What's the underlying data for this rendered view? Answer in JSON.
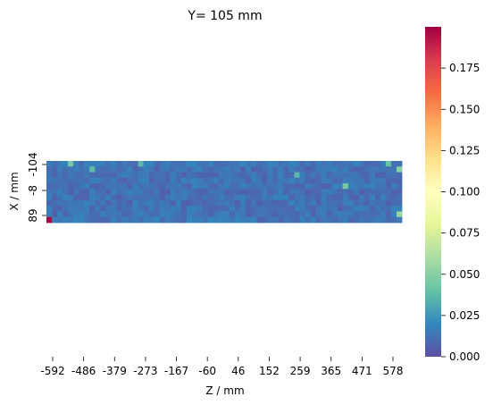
{
  "chart_data": {
    "type": "heatmap",
    "title": "Y= 105 mm",
    "xlabel": "Z / mm",
    "ylabel": "X / mm",
    "x_tick_labels": [
      "-592",
      "-486",
      "-379",
      "-273",
      "-167",
      "-60",
      "46",
      "152",
      "259",
      "365",
      "471",
      "578"
    ],
    "y_tick_labels": [
      "-104",
      "-8",
      "89"
    ],
    "colormap": "Spectral_r",
    "value_range": [
      0.0,
      0.2
    ],
    "colorbar_ticks": [
      "0.000",
      "0.025",
      "0.050",
      "0.075",
      "0.100",
      "0.125",
      "0.150",
      "0.175"
    ],
    "grid": [
      66,
      11
    ],
    "baseline_value": 0.012,
    "hotspots": [
      {
        "z": -592,
        "x": 89,
        "value": 0.199
      },
      {
        "z": -524,
        "x": -104,
        "value": 0.045
      },
      {
        "z": -442,
        "x": -80,
        "value": 0.038
      },
      {
        "z": -290,
        "x": -104,
        "value": 0.036
      },
      {
        "z": 250,
        "x": -60,
        "value": 0.035
      },
      {
        "z": 400,
        "x": -30,
        "value": 0.045
      },
      {
        "z": 560,
        "x": -104,
        "value": 0.04
      },
      {
        "z": 590,
        "x": -90,
        "value": 0.05
      },
      {
        "z": 590,
        "x": 70,
        "value": 0.055
      }
    ]
  }
}
